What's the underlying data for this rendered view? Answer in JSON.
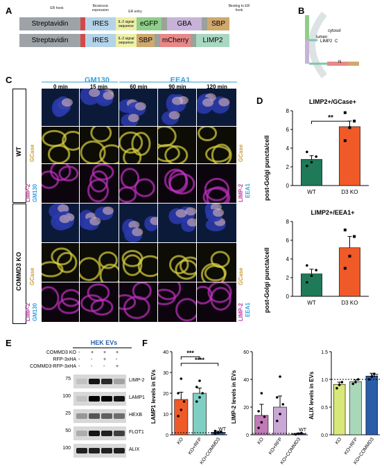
{
  "panels": {
    "A": "A",
    "B": "B",
    "C": "C",
    "D": "D",
    "E": "E",
    "F": "F"
  },
  "panelA": {
    "headers": {
      "hook": "ER hook",
      "bicis": "Bicistronic expression",
      "erentry": "ER entry",
      "binding": "Binding to ER hook"
    },
    "row1": [
      "Streptavidin",
      "KDEL",
      "IRES",
      "IL-2 signal sequence",
      "eGFP",
      "linker",
      "GBA",
      "linker",
      "SBP"
    ],
    "row2": [
      "Streptavidin",
      "KDEL",
      "IRES",
      "IL-2 signal sequence",
      "SBP",
      "linker",
      "mCherry",
      "linker",
      "LIMP2"
    ],
    "colors": {
      "strep": "#9ea3a8",
      "kdel": "#d44848",
      "ires": "#b5d3e8",
      "il2": "#eef0a8",
      "egfp": "#8fce8a",
      "gba": "#c7b3d8",
      "sbp": "#cfa86e",
      "linker": "#9aa29a",
      "mcherry": "#e88888",
      "limp2": "#a8d8c2"
    }
  },
  "panelB": {
    "cytosol": "cytosol",
    "lumen": "lumen",
    "limp2": "LIMP2",
    "c": "C",
    "n": "N",
    "gba": "GBA",
    "egfp": "eGFP",
    "mcherry": "mCherry",
    "sbp": "SBP"
  },
  "panelC": {
    "groups": {
      "gm130": "GM130",
      "eea1": "EEA1"
    },
    "times": [
      "0 min",
      "15 min",
      "60 min",
      "90 min",
      "120 min"
    ],
    "wt": "WT",
    "ko": "COMMD3 KO",
    "gcase": "GCase",
    "limp2": "LIMP-2",
    "gm130": "GM130",
    "eea1": "EEA1",
    "colors": {
      "groupBlue": "#3aa0d8",
      "gcase": "#c8a040",
      "limp2": "#c03aa0",
      "gm130": "#3aa0d8"
    }
  },
  "chart_data": [
    {
      "type": "bar",
      "title": "LIMP2+/GCase+",
      "ylabel": "post-Golgi puncta/cell",
      "categories": [
        "WT",
        "D3 KO"
      ],
      "values": [
        2.8,
        6.3
      ],
      "errors": [
        0.4,
        0.6
      ],
      "ylim": [
        0,
        8
      ],
      "yticks": [
        0,
        2,
        4,
        6,
        8
      ],
      "colors": [
        "#1f7a5a",
        "#f05a28"
      ],
      "points": [
        [
          2.1,
          2.5,
          3.1,
          3.6
        ],
        [
          4.8,
          6.2,
          6.9,
          7.8
        ]
      ],
      "significance": "**"
    },
    {
      "type": "bar",
      "title": "LIMP2+/EEA1+",
      "ylabel": "post-Golgi puncta/cell",
      "categories": [
        "WT",
        "D3 KO"
      ],
      "values": [
        2.4,
        5.2
      ],
      "errors": [
        0.5,
        1.2
      ],
      "ylim": [
        0,
        8
      ],
      "yticks": [
        0,
        2,
        4,
        6,
        8
      ],
      "colors": [
        "#1f7a5a",
        "#f05a28"
      ],
      "points": [
        [
          1.5,
          2.2,
          2.8,
          3.3
        ],
        [
          3.0,
          4.3,
          6.4,
          7.1
        ]
      ]
    },
    {
      "type": "bar",
      "ylabel": "LAMP1 levels in EVs",
      "categories": [
        "KO",
        "KO+RFP",
        "KO+COMMD3"
      ],
      "values": [
        17,
        20,
        1.2
      ],
      "errors": [
        3.5,
        2.5,
        0.5
      ],
      "ylim": [
        0,
        40
      ],
      "yticks": [
        0,
        10,
        20,
        30,
        40
      ],
      "colors": [
        "#f05a28",
        "#7fcfc3",
        "#2a5ca8"
      ],
      "points": [
        [
          9,
          12,
          16,
          20,
          27
        ],
        [
          16,
          18,
          20,
          23,
          26
        ],
        [
          0.6,
          1,
          1.4,
          1.8
        ]
      ],
      "significance": [
        "***",
        "****"
      ],
      "reference": "WT"
    },
    {
      "type": "bar",
      "ylabel": "LIMP-2 levels in EVs",
      "categories": [
        "KO",
        "KO+RFP",
        "KO+COMMD3"
      ],
      "values": [
        14,
        20,
        0.8
      ],
      "errors": [
        8,
        8,
        0.5
      ],
      "ylim": [
        0,
        60
      ],
      "yticks": [
        0,
        20,
        40,
        60
      ],
      "colors": [
        "#c17ab8",
        "#c9a8d8",
        "#4a3a9a"
      ],
      "points": [
        [
          5,
          9,
          13,
          17,
          30
        ],
        [
          10,
          15,
          22,
          27,
          42
        ],
        [
          0.3,
          0.8,
          1.2
        ]
      ],
      "reference": "WT"
    },
    {
      "type": "bar",
      "ylabel": "ALIX levels in EVs",
      "categories": [
        "KO",
        "KO+RFP",
        "KO+COMMD3"
      ],
      "values": [
        0.91,
        0.96,
        1.06
      ],
      "errors": [
        0.04,
        0.03,
        0.05
      ],
      "ylim": [
        0,
        1.5
      ],
      "yticks": [
        0.0,
        0.5,
        1.0,
        1.5
      ],
      "colors": [
        "#d8e87a",
        "#a8d8b8",
        "#2a5ca8"
      ],
      "points": [
        [
          0.84,
          0.9,
          0.95
        ],
        [
          0.92,
          0.95,
          1.0
        ],
        [
          1.0,
          1.05,
          1.1
        ]
      ],
      "reference": "WT"
    }
  ],
  "panelE": {
    "title": "HEK EVs",
    "conditions": [
      {
        "label": "COMMD3 KO",
        "values": [
          "-",
          "+",
          "+",
          "+"
        ]
      },
      {
        "label": "RFP-3xHA",
        "values": [
          "-",
          "-",
          "+",
          "-"
        ]
      },
      {
        "label": "COMMD3-RFP-3xHA",
        "values": [
          "-",
          "-",
          "-",
          "+"
        ]
      }
    ],
    "blots": [
      {
        "mw": "75",
        "name": "LIMP-2"
      },
      {
        "mw": "100",
        "name": "LAMP1"
      },
      {
        "mw": "25",
        "name": "HEXB"
      },
      {
        "mw": "50",
        "name": "FLOT1"
      },
      {
        "mw": "100",
        "name": "ALIX"
      }
    ]
  }
}
